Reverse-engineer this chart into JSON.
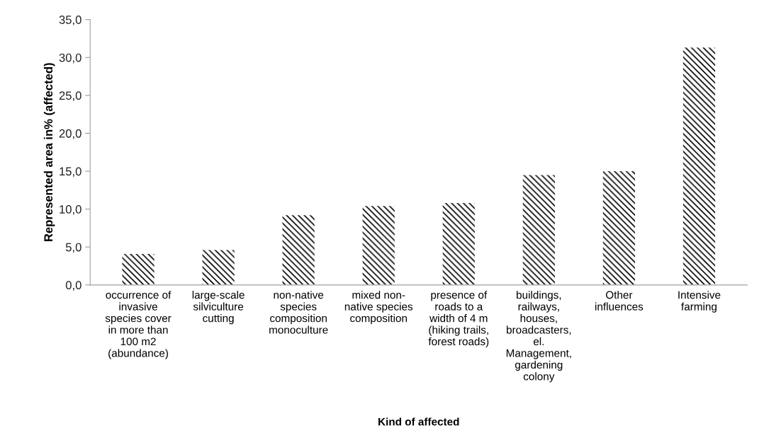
{
  "chart_data": {
    "type": "bar",
    "categories": [
      "occurrence of\ninvasive\nspecies cover\nin more than\n100 m2\n(abundance)",
      "large-scale\nsilviculture\ncutting",
      "non-native\nspecies\ncomposition\nmonoculture",
      "mixed non-\nnative species\ncomposition",
      "presence of\nroads to a\nwidth of 4 m\n(hiking trails,\nforest roads)",
      "buildings,\nrailways,\nhouses,\nbroadcasters,\nel.\nManagement,\ngardening\ncolony",
      "Other\ninfluences",
      "Intensive\nfarming"
    ],
    "values": [
      4.1,
      4.6,
      9.2,
      10.4,
      10.8,
      14.5,
      15.0,
      31.3
    ],
    "color": "#000000",
    "xlabel": "Kind of affected",
    "ylabel": "Represented area in% (affected)",
    "ylim": [
      0,
      35
    ],
    "yticks": [
      {
        "value": 0,
        "label": "0,0"
      },
      {
        "value": 5,
        "label": "5,0"
      },
      {
        "value": 10,
        "label": "10,0"
      },
      {
        "value": 15,
        "label": "15,0"
      },
      {
        "value": 20,
        "label": "20,0"
      },
      {
        "value": 25,
        "label": "25,0"
      },
      {
        "value": 30,
        "label": "30,0"
      },
      {
        "value": 35,
        "label": "35,0"
      }
    ],
    "grid": false
  }
}
